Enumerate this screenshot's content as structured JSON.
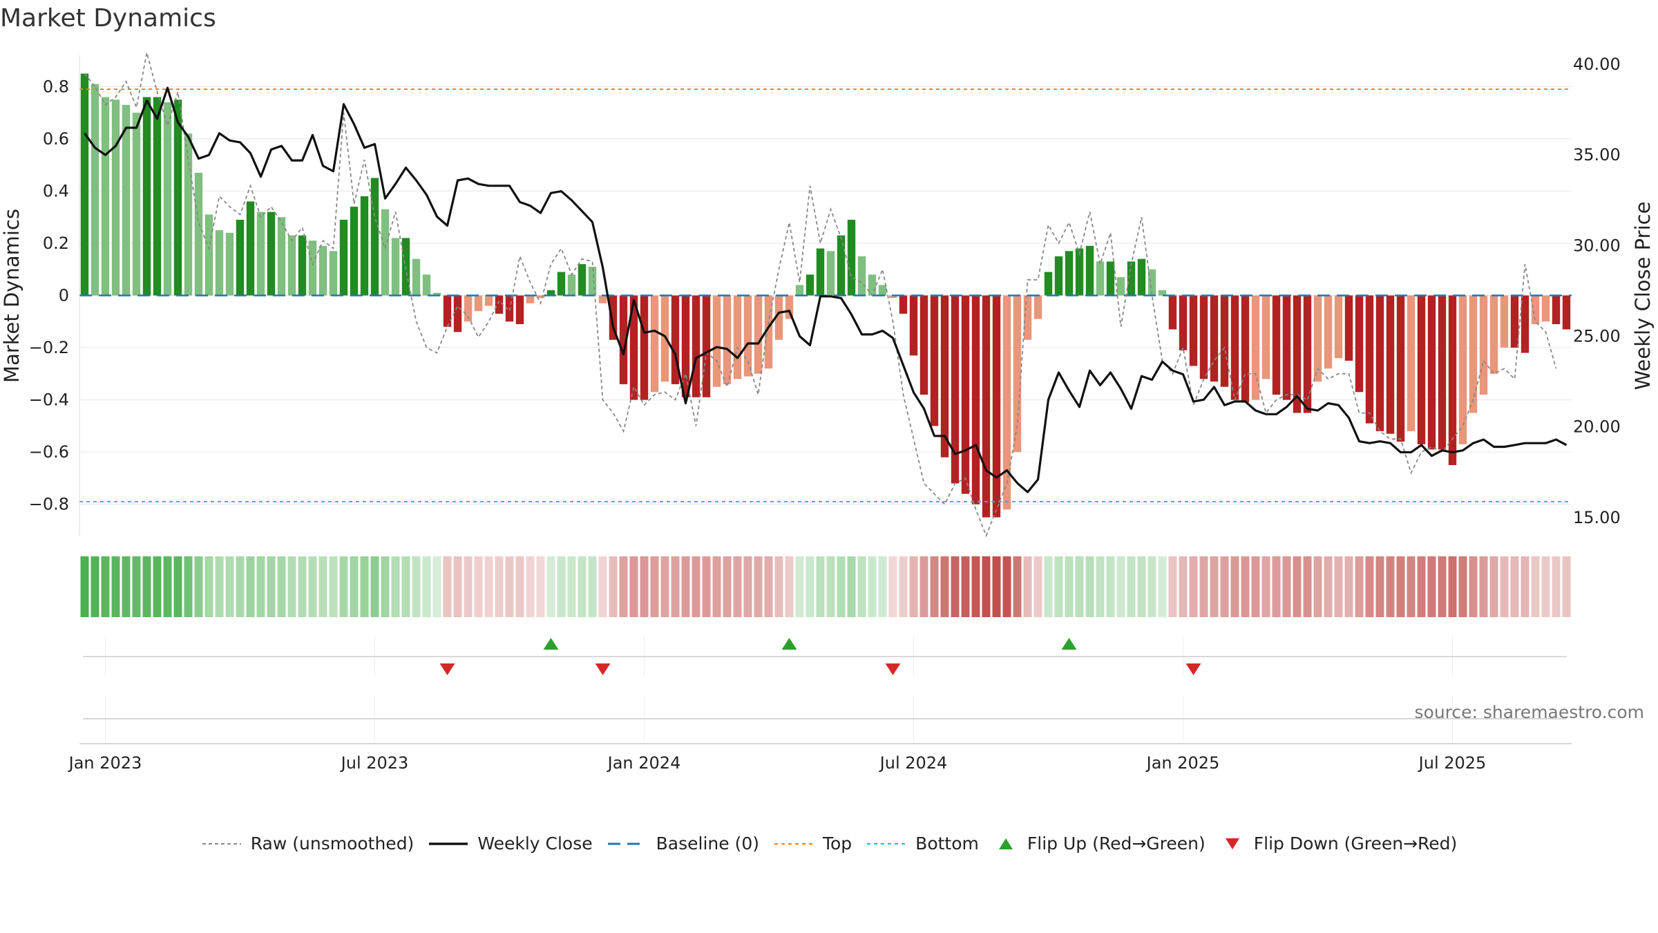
{
  "title": "Market Dynamics",
  "source": "source: sharemaestro.com",
  "chart_data": {
    "type": "bar",
    "title": "Market Dynamics",
    "ylabel_left": "Market Dynamics",
    "ylabel_right": "Weekly Close Price",
    "ylim_left": [
      -0.92,
      0.92
    ],
    "ylim_right": [
      14.0,
      40.5
    ],
    "yticks_left": [
      {
        "value": 0.8,
        "label": "0.8"
      },
      {
        "value": 0.6,
        "label": "0.6"
      },
      {
        "value": 0.4,
        "label": "0.4"
      },
      {
        "value": 0.2,
        "label": "0.2"
      },
      {
        "value": 0.0,
        "label": "0"
      },
      {
        "value": -0.2,
        "label": "−0.2"
      },
      {
        "value": -0.4,
        "label": "−0.4"
      },
      {
        "value": -0.6,
        "label": "−0.6"
      },
      {
        "value": -0.8,
        "label": "−0.8"
      }
    ],
    "yticks_right": [
      {
        "value": 40,
        "label": "40.00"
      },
      {
        "value": 35,
        "label": "35.00"
      },
      {
        "value": 30,
        "label": "30.00"
      },
      {
        "value": 25,
        "label": "25.00"
      },
      {
        "value": 20,
        "label": "20.00"
      },
      {
        "value": 15,
        "label": "15.00"
      }
    ],
    "xticks": [
      {
        "week": 2,
        "label": "Jan 2023"
      },
      {
        "week": 28,
        "label": "Jul 2023"
      },
      {
        "week": 54,
        "label": "Jan 2024"
      },
      {
        "week": 80,
        "label": "Jul 2024"
      },
      {
        "week": 106,
        "label": "Jan 2025"
      },
      {
        "week": 132,
        "label": "Jul 2025"
      }
    ],
    "n_weeks": 144,
    "top_level": 0.79,
    "bottom_level": -0.79,
    "baseline": 0,
    "bars": [
      0.85,
      0.81,
      0.76,
      0.75,
      0.73,
      0.7,
      0.76,
      0.76,
      0.74,
      0.75,
      0.62,
      0.47,
      0.31,
      0.25,
      0.24,
      0.29,
      0.36,
      0.32,
      0.32,
      0.3,
      0.23,
      0.23,
      0.21,
      0.19,
      0.17,
      0.29,
      0.34,
      0.38,
      0.45,
      0.33,
      0.22,
      0.22,
      0.14,
      0.08,
      0.01,
      -0.12,
      -0.14,
      -0.1,
      -0.06,
      -0.04,
      -0.07,
      -0.1,
      -0.11,
      -0.03,
      -0.01,
      0.02,
      0.09,
      0.08,
      0.12,
      0.11,
      -0.03,
      -0.17,
      -0.34,
      -0.4,
      -0.4,
      -0.37,
      -0.33,
      -0.34,
      -0.39,
      -0.39,
      -0.39,
      -0.35,
      -0.34,
      -0.32,
      -0.31,
      -0.3,
      -0.28,
      -0.17,
      -0.09,
      0.04,
      0.08,
      0.18,
      0.17,
      0.23,
      0.29,
      0.15,
      0.08,
      0.04,
      -0.01,
      -0.07,
      -0.23,
      -0.38,
      -0.5,
      -0.62,
      -0.72,
      -0.76,
      -0.8,
      -0.85,
      -0.85,
      -0.82,
      -0.6,
      -0.17,
      -0.09,
      0.09,
      0.15,
      0.17,
      0.18,
      0.19,
      0.13,
      0.13,
      0.07,
      0.13,
      0.14,
      0.1,
      0.02,
      -0.13,
      -0.21,
      -0.27,
      -0.32,
      -0.33,
      -0.35,
      -0.4,
      -0.41,
      -0.4,
      -0.32,
      -0.38,
      -0.4,
      -0.45,
      -0.45,
      -0.33,
      -0.28,
      -0.24,
      -0.25,
      -0.37,
      -0.49,
      -0.52,
      -0.53,
      -0.56,
      -0.52,
      -0.57,
      -0.59,
      -0.59,
      -0.65,
      -0.57,
      -0.45,
      -0.38,
      -0.3,
      -0.2,
      -0.2,
      -0.22,
      -0.11,
      -0.1,
      -0.11,
      -0.13
    ],
    "raw_unsmoothed": [
      0.85,
      0.8,
      0.73,
      0.76,
      0.82,
      0.72,
      0.93,
      0.78,
      0.65,
      0.78,
      0.52,
      0.28,
      0.18,
      0.38,
      0.34,
      0.31,
      0.42,
      0.3,
      0.34,
      0.28,
      0.21,
      0.26,
      0.12,
      0.21,
      0.18,
      0.7,
      0.35,
      0.52,
      0.3,
      0.18,
      0.32,
      0.1,
      -0.1,
      -0.2,
      -0.22,
      -0.12,
      -0.04,
      -0.08,
      -0.16,
      -0.1,
      -0.02,
      -0.06,
      0.15,
      0.05,
      -0.03,
      0.12,
      0.18,
      0.08,
      0.14,
      0.13,
      -0.4,
      -0.45,
      -0.52,
      -0.35,
      -0.42,
      -0.38,
      -0.37,
      -0.4,
      -0.3,
      -0.5,
      -0.22,
      -0.25,
      -0.35,
      -0.2,
      -0.25,
      -0.38,
      -0.1,
      0.1,
      0.28,
      0.05,
      0.42,
      0.2,
      0.33,
      0.22,
      0.07,
      0.05,
      0.0,
      0.1,
      -0.1,
      -0.38,
      -0.55,
      -0.72,
      -0.76,
      -0.8,
      -0.72,
      -0.7,
      -0.82,
      -0.92,
      -0.82,
      -0.72,
      -0.5,
      0.06,
      0.06,
      0.27,
      0.2,
      0.28,
      0.16,
      0.32,
      0.12,
      0.24,
      -0.12,
      0.12,
      0.3,
      0.0,
      -0.25,
      -0.3,
      -0.2,
      -0.42,
      -0.32,
      -0.25,
      -0.2,
      -0.4,
      -0.3,
      -0.3,
      -0.45,
      -0.4,
      -0.38,
      -0.38,
      -0.4,
      -0.28,
      -0.32,
      -0.3,
      -0.3,
      -0.45,
      -0.45,
      -0.52,
      -0.55,
      -0.55,
      -0.68,
      -0.6,
      -0.58,
      -0.6,
      -0.55,
      -0.5,
      -0.4,
      -0.25,
      -0.3,
      -0.28,
      -0.32,
      0.12,
      -0.1,
      -0.14,
      -0.28
    ],
    "weekly_close": [
      36.2,
      35.4,
      35.0,
      35.5,
      36.5,
      36.5,
      38.0,
      37.0,
      38.7,
      36.8,
      36.0,
      34.8,
      35.0,
      36.2,
      35.8,
      35.7,
      35.1,
      33.8,
      35.3,
      35.5,
      34.7,
      34.7,
      36.1,
      34.4,
      34.1,
      37.8,
      36.7,
      35.4,
      35.6,
      32.6,
      33.4,
      34.3,
      33.6,
      32.8,
      31.6,
      31.1,
      33.6,
      33.7,
      33.4,
      33.3,
      33.3,
      33.3,
      32.4,
      32.2,
      31.8,
      32.9,
      33.0,
      32.5,
      31.9,
      31.3,
      28.8,
      25.5,
      24.0,
      27.0,
      25.2,
      25.3,
      25.0,
      24.0,
      21.3,
      23.8,
      24.1,
      24.4,
      24.3,
      23.8,
      24.6,
      24.6,
      25.5,
      26.3,
      26.4,
      25.0,
      24.5,
      27.2,
      27.2,
      27.1,
      26.2,
      25.1,
      25.1,
      25.3,
      24.9,
      23.4,
      21.9,
      21.0,
      19.5,
      19.5,
      18.5,
      18.7,
      19.0,
      17.6,
      17.2,
      17.6,
      16.9,
      16.4,
      17.1,
      21.5,
      23.0,
      22.0,
      21.1,
      23.1,
      22.3,
      23.0,
      22.1,
      21.0,
      22.8,
      22.6,
      23.6,
      23.1,
      22.9,
      21.4,
      21.5,
      22.2,
      21.2,
      21.4,
      21.4,
      20.9,
      20.7,
      20.7,
      21.1,
      21.7,
      21.0,
      20.9,
      21.3,
      21.2,
      20.5,
      19.2,
      19.1,
      19.2,
      19.1,
      18.6,
      18.6,
      19.0,
      18.4,
      18.7,
      18.6,
      18.7,
      19.1,
      19.3,
      18.9,
      18.9,
      19.0,
      19.1,
      19.1,
      19.1,
      19.3,
      19.0
    ],
    "flips": [
      {
        "week": 35,
        "direction": "down"
      },
      {
        "week": 45,
        "direction": "up"
      },
      {
        "week": 50,
        "direction": "down"
      },
      {
        "week": 68,
        "direction": "up"
      },
      {
        "week": 78,
        "direction": "down"
      },
      {
        "week": 95,
        "direction": "up"
      },
      {
        "week": 107,
        "direction": "down"
      }
    ],
    "colors": {
      "strong_green": "#228B22",
      "light_green": "#7FBF7F",
      "strong_red": "#B22222",
      "light_red": "#E9967A",
      "raw": "#888888",
      "close": "#111111",
      "baseline": "#1f77b4",
      "top": "#ff7f0e",
      "bottom": "#17becf",
      "flip_up": "#2ca02c",
      "flip_down": "#d62728",
      "strip_green": "#4CAF50",
      "strip_red": "#C0504D"
    },
    "legend": [
      {
        "key": "raw",
        "label": "Raw (unsmoothed)"
      },
      {
        "key": "close",
        "label": "Weekly Close"
      },
      {
        "key": "baseline",
        "label": "Baseline (0)"
      },
      {
        "key": "top",
        "label": "Top"
      },
      {
        "key": "bottom",
        "label": "Bottom"
      },
      {
        "key": "flip_up",
        "label": "Flip Up (Red→Green)"
      },
      {
        "key": "flip_down",
        "label": "Flip Down (Green→Red)"
      }
    ]
  }
}
